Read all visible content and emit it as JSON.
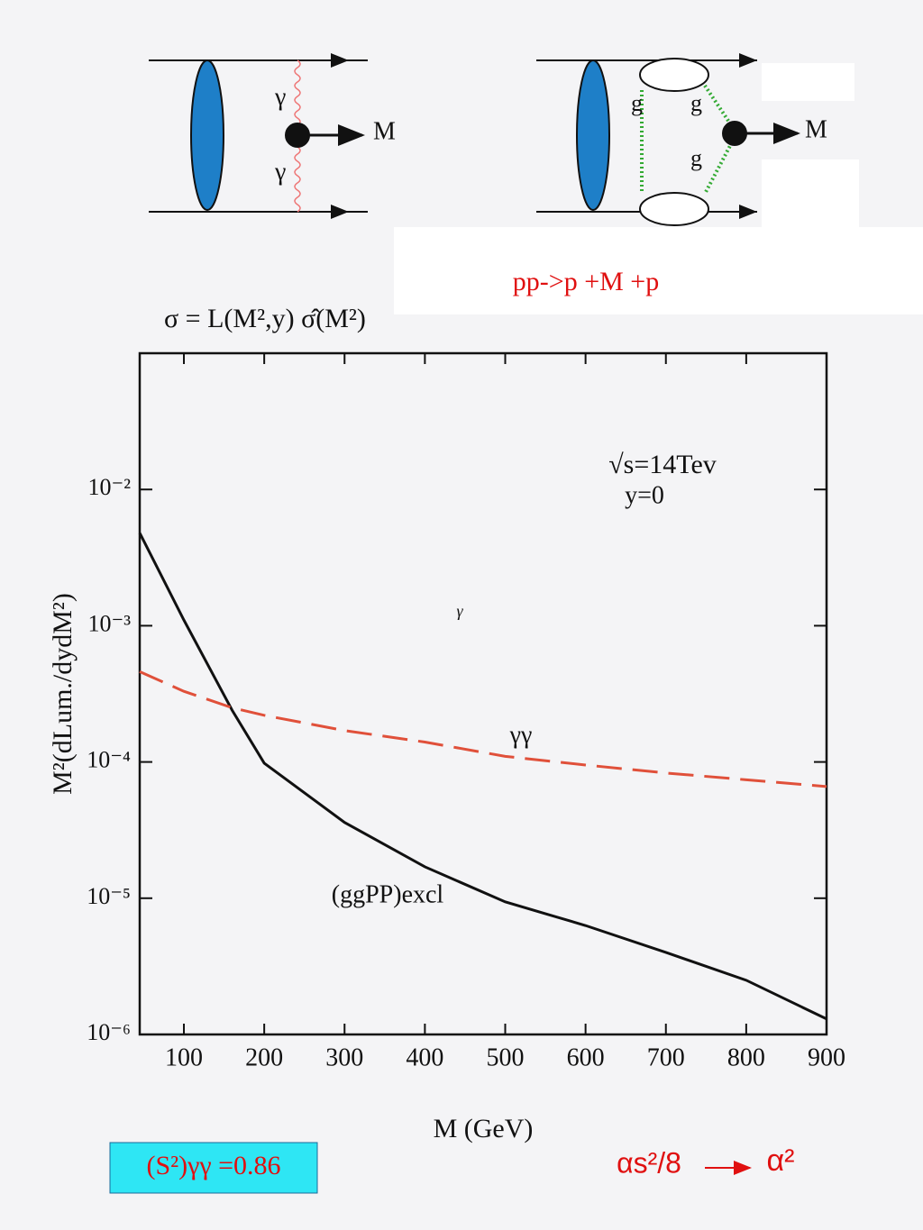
{
  "chart_data": {
    "type": "line",
    "title": "σ = L(M²,y) σ̂(M²)",
    "x_label": "M (GeV)",
    "y_label": "M²(dLum./dydM²)",
    "x": [
      45,
      100,
      160,
      200,
      300,
      400,
      500,
      600,
      700,
      800,
      900
    ],
    "series": [
      {
        "name": "(ggPP)excl",
        "color": "#111111",
        "style": "solid",
        "values": [
          0.0048,
          0.0011,
          0.00024,
          9.8e-05,
          3.6e-05,
          1.7e-05,
          9.4e-06,
          6.3e-06,
          4e-06,
          2.5e-06,
          1.3e-06
        ]
      },
      {
        "name": "γγ",
        "color": "#e0503a",
        "style": "dashed",
        "values": [
          0.00046,
          0.00033,
          0.00025,
          0.00022,
          0.00017,
          0.00014,
          0.00011,
          9.5e-05,
          8.3e-05,
          7.4e-05,
          6.6e-05
        ]
      }
    ],
    "xlim": [
      45,
      900
    ],
    "xticks": [
      100,
      200,
      300,
      400,
      500,
      600,
      700,
      800,
      900
    ],
    "ylim": [
      1e-06,
      0.1
    ],
    "log_y": true,
    "yticks": [
      {
        "value": 1e-06,
        "label": "10⁻⁶"
      },
      {
        "value": 1e-05,
        "label": "10⁻⁵"
      },
      {
        "value": 0.0001,
        "label": "10⁻⁴"
      },
      {
        "value": 0.001,
        "label": "10⁻³"
      },
      {
        "value": 0.01,
        "label": "10⁻²"
      }
    ],
    "annotations": [
      "√s=14Tev",
      "y=0",
      "γ"
    ]
  },
  "diagrams": {
    "left": [
      "γ",
      "γ",
      "M"
    ],
    "right": [
      "g",
      "g",
      "g",
      "M"
    ],
    "process": "pp->p +M +p"
  },
  "footer": {
    "survival": "(S²)γγ  =0.86",
    "coupling_from": "αs²/8",
    "coupling_to": "α²"
  }
}
